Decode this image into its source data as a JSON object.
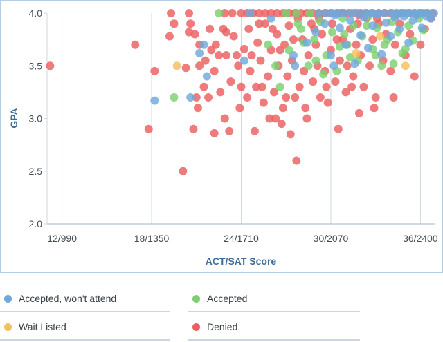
{
  "chart_data": {
    "type": "scatter",
    "title": "",
    "xlabel": "ACT/SAT Score",
    "ylabel": "GPA",
    "x_ticks": [
      {
        "value": 12,
        "label": "12/990"
      },
      {
        "value": 18,
        "label": "18/1350"
      },
      {
        "value": 24,
        "label": "24/1710"
      },
      {
        "value": 30,
        "label": "30/2070"
      },
      {
        "value": 36,
        "label": "36/2400"
      }
    ],
    "y_ticks": [
      {
        "value": 2.0,
        "label": "2.0"
      },
      {
        "value": 2.5,
        "label": "2.5"
      },
      {
        "value": 3.0,
        "label": "3.0"
      },
      {
        "value": 3.5,
        "label": "3.5"
      },
      {
        "value": 4.0,
        "label": "4.0"
      }
    ],
    "xlim": [
      11,
      37
    ],
    "ylim": [
      2.0,
      4.0
    ],
    "grid": "vertical",
    "legend_position": "bottom",
    "series": [
      {
        "name": "Accepted, won't attend",
        "color": "#6fa8dc",
        "points": [
          [
            18.2,
            3.17
          ],
          [
            20.6,
            3.2
          ],
          [
            21.7,
            3.4
          ],
          [
            21.5,
            3.7
          ],
          [
            21.2,
            3.62
          ],
          [
            24.2,
            3.55
          ],
          [
            26.0,
            3.95
          ],
          [
            27.5,
            3.6
          ],
          [
            28.4,
            3.72
          ],
          [
            29.0,
            3.82
          ],
          [
            29.6,
            3.9
          ],
          [
            30.0,
            3.6
          ],
          [
            30.3,
            3.98
          ],
          [
            30.6,
            3.86
          ],
          [
            31.0,
            3.7
          ],
          [
            31.3,
            3.93
          ],
          [
            31.6,
            3.52
          ],
          [
            32.0,
            3.79
          ],
          [
            32.2,
            3.96
          ],
          [
            32.5,
            3.67
          ],
          [
            32.8,
            3.88
          ],
          [
            33.0,
            3.99
          ],
          [
            33.4,
            3.61
          ],
          [
            33.7,
            3.91
          ],
          [
            34.0,
            3.78
          ],
          [
            34.3,
            3.96
          ],
          [
            34.6,
            3.85
          ],
          [
            34.9,
            3.97
          ],
          [
            35.2,
            3.72
          ],
          [
            35.5,
            3.93
          ],
          [
            35.8,
            3.99
          ],
          [
            36.1,
            3.86
          ],
          [
            36.4,
            3.97
          ],
          [
            36.7,
            3.95
          ],
          [
            36.9,
            4.0
          ],
          [
            34.1,
            4.0
          ],
          [
            34.4,
            4.0
          ],
          [
            34.7,
            4.0
          ],
          [
            35.0,
            4.0
          ],
          [
            35.3,
            4.0
          ],
          [
            35.6,
            4.0
          ],
          [
            35.9,
            4.0
          ],
          [
            36.2,
            4.0
          ],
          [
            36.5,
            4.0
          ],
          [
            31.4,
            4.0
          ],
          [
            31.8,
            4.0
          ],
          [
            32.3,
            4.0
          ],
          [
            32.7,
            4.0
          ],
          [
            33.2,
            4.0
          ],
          [
            33.6,
            4.0
          ],
          [
            30.1,
            4.0
          ],
          [
            30.5,
            4.0
          ],
          [
            30.9,
            4.0
          ],
          [
            29.2,
            4.0
          ],
          [
            29.7,
            4.0
          ],
          [
            24.6,
            4.0
          ],
          [
            30.2,
            3.5
          ],
          [
            27.6,
            3.5
          ]
        ]
      },
      {
        "name": "Accepted",
        "color": "#7dcf6f",
        "points": [
          [
            19.5,
            3.2
          ],
          [
            22.5,
            4.0
          ],
          [
            26.6,
            3.3
          ],
          [
            27.2,
            3.65
          ],
          [
            28.0,
            3.85
          ],
          [
            28.5,
            3.5
          ],
          [
            28.9,
            3.75
          ],
          [
            29.3,
            3.92
          ],
          [
            29.7,
            3.6
          ],
          [
            30.1,
            3.82
          ],
          [
            30.4,
            3.45
          ],
          [
            30.8,
            3.95
          ],
          [
            31.1,
            3.7
          ],
          [
            31.5,
            3.88
          ],
          [
            31.8,
            3.55
          ],
          [
            32.1,
            3.78
          ],
          [
            32.5,
            3.97
          ],
          [
            32.8,
            3.66
          ],
          [
            33.1,
            3.86
          ],
          [
            33.4,
            3.5
          ],
          [
            33.8,
            3.75
          ],
          [
            34.1,
            3.92
          ],
          [
            34.5,
            3.82
          ],
          [
            34.8,
            3.62
          ],
          [
            35.2,
            3.88
          ],
          [
            35.5,
            3.74
          ],
          [
            35.9,
            3.95
          ],
          [
            36.2,
            3.84
          ],
          [
            27.8,
            3.9
          ],
          [
            28.2,
            3.72
          ],
          [
            29.0,
            3.55
          ],
          [
            29.5,
            3.42
          ],
          [
            30.6,
            3.68
          ],
          [
            31.3,
            3.58
          ],
          [
            32.4,
            3.88
          ],
          [
            33.0,
            3.6
          ],
          [
            33.6,
            3.7
          ],
          [
            34.2,
            3.52
          ],
          [
            35.0,
            3.66
          ],
          [
            27.0,
            4.0
          ],
          [
            27.7,
            4.0
          ],
          [
            28.6,
            4.0
          ],
          [
            25.8,
            3.7
          ],
          [
            26.3,
            3.5
          ],
          [
            30.9,
            3.8
          ]
        ]
      },
      {
        "name": "Wait Listed",
        "color": "#f1c15d",
        "points": [
          [
            19.7,
            3.5
          ],
          [
            33.3,
            3.78
          ],
          [
            35.0,
            3.5
          ],
          [
            31.7,
            3.62
          ]
        ]
      },
      {
        "name": "Denied",
        "color": "#ec5f5f",
        "points": [
          [
            11.2,
            3.5
          ],
          [
            16.9,
            3.7
          ],
          [
            17.8,
            2.9
          ],
          [
            18.2,
            3.45
          ],
          [
            19.2,
            3.78
          ],
          [
            19.5,
            3.9
          ],
          [
            19.3,
            4.0
          ],
          [
            20.1,
            2.5
          ],
          [
            20.3,
            3.48
          ],
          [
            20.5,
            3.82
          ],
          [
            20.6,
            3.9
          ],
          [
            20.5,
            4.0
          ],
          [
            20.9,
            3.8
          ],
          [
            20.8,
            2.9
          ],
          [
            21.1,
            3.1
          ],
          [
            21.0,
            3.2
          ],
          [
            21.5,
            3.3
          ],
          [
            21.2,
            3.5
          ],
          [
            21.2,
            3.7
          ],
          [
            21.6,
            3.55
          ],
          [
            21.8,
            3.2
          ],
          [
            22.0,
            3.65
          ],
          [
            22.2,
            3.45
          ],
          [
            22.3,
            3.7
          ],
          [
            22.2,
            2.86
          ],
          [
            22.6,
            3.25
          ],
          [
            22.9,
            3.0
          ],
          [
            23.0,
            3.6
          ],
          [
            23.2,
            2.88
          ],
          [
            23.3,
            3.35
          ],
          [
            23.5,
            3.78
          ],
          [
            23.8,
            3.5
          ],
          [
            24.0,
            3.3
          ],
          [
            23.9,
            3.1
          ],
          [
            24.2,
            3.66
          ],
          [
            24.5,
            3.85
          ],
          [
            24.6,
            3.45
          ],
          [
            24.9,
            2.88
          ],
          [
            25.0,
            3.3
          ],
          [
            25.1,
            3.72
          ],
          [
            25.3,
            3.55
          ],
          [
            25.5,
            3.15
          ],
          [
            25.6,
            3.9
          ],
          [
            25.8,
            3.4
          ],
          [
            25.9,
            3.0
          ],
          [
            26.0,
            3.65
          ],
          [
            26.2,
            3.25
          ],
          [
            26.4,
            3.8
          ],
          [
            26.5,
            3.5
          ],
          [
            26.7,
            2.95
          ],
          [
            26.8,
            3.1
          ],
          [
            26.9,
            3.7
          ],
          [
            27.1,
            3.4
          ],
          [
            27.2,
            3.88
          ],
          [
            27.3,
            2.85
          ],
          [
            27.4,
            3.55
          ],
          [
            27.6,
            3.2
          ],
          [
            27.7,
            2.6
          ],
          [
            27.9,
            3.3
          ],
          [
            28.1,
            3.75
          ],
          [
            28.2,
            3.45
          ],
          [
            28.4,
            3.0
          ],
          [
            28.5,
            3.6
          ],
          [
            28.7,
            3.9
          ],
          [
            28.8,
            3.35
          ],
          [
            29.0,
            3.7
          ],
          [
            29.1,
            3.5
          ],
          [
            29.3,
            3.2
          ],
          [
            29.4,
            3.8
          ],
          [
            29.6,
            3.45
          ],
          [
            29.8,
            3.15
          ],
          [
            30.0,
            3.65
          ],
          [
            30.1,
            3.9
          ],
          [
            30.3,
            3.35
          ],
          [
            30.5,
            2.9
          ],
          [
            30.6,
            3.55
          ],
          [
            30.8,
            3.75
          ],
          [
            31.0,
            3.25
          ],
          [
            31.1,
            3.5
          ],
          [
            31.3,
            3.85
          ],
          [
            31.5,
            3.4
          ],
          [
            31.7,
            3.7
          ],
          [
            31.9,
            3.05
          ],
          [
            32.0,
            3.6
          ],
          [
            32.2,
            3.3
          ],
          [
            32.4,
            3.95
          ],
          [
            32.6,
            3.5
          ],
          [
            32.8,
            3.75
          ],
          [
            33.0,
            3.2
          ],
          [
            33.2,
            3.9
          ],
          [
            33.5,
            3.55
          ],
          [
            33.7,
            3.8
          ],
          [
            34.0,
            3.45
          ],
          [
            34.3,
            3.7
          ],
          [
            34.6,
            3.9
          ],
          [
            35.0,
            3.6
          ],
          [
            35.3,
            3.8
          ],
          [
            35.6,
            3.4
          ],
          [
            36.0,
            3.7
          ],
          [
            36.3,
            3.85
          ],
          [
            36.7,
            3.95
          ],
          [
            26.6,
            3.65
          ],
          [
            27.8,
            3.95
          ],
          [
            29.2,
            3.95
          ],
          [
            30.7,
            4.0
          ],
          [
            31.9,
            3.98
          ],
          [
            22.8,
            3.85
          ],
          [
            23.7,
            3.6
          ],
          [
            24.4,
            3.2
          ],
          [
            25.2,
            3.9
          ],
          [
            26.1,
            3.85
          ],
          [
            27.5,
            3.75
          ],
          [
            28.9,
            3.85
          ],
          [
            30.4,
            3.75
          ],
          [
            31.8,
            3.9
          ],
          [
            33.1,
            3.95
          ],
          [
            34.4,
            3.98
          ],
          [
            35.8,
            3.98
          ],
          [
            24.0,
            4.0
          ],
          [
            24.4,
            4.0
          ],
          [
            24.8,
            4.0
          ],
          [
            25.2,
            4.0
          ],
          [
            25.6,
            4.0
          ],
          [
            26.0,
            4.0
          ],
          [
            26.4,
            4.0
          ],
          [
            26.8,
            4.0
          ],
          [
            27.2,
            4.0
          ],
          [
            27.6,
            4.0
          ],
          [
            28.0,
            4.0
          ],
          [
            28.4,
            4.0
          ],
          [
            28.8,
            4.0
          ],
          [
            29.2,
            4.0
          ],
          [
            29.6,
            4.0
          ],
          [
            30.0,
            4.0
          ],
          [
            30.4,
            4.0
          ],
          [
            30.8,
            4.0
          ],
          [
            31.2,
            4.0
          ],
          [
            31.6,
            4.0
          ],
          [
            32.0,
            4.0
          ],
          [
            32.4,
            4.0
          ],
          [
            32.8,
            4.0
          ],
          [
            33.2,
            4.0
          ],
          [
            33.6,
            4.0
          ],
          [
            34.0,
            4.0
          ],
          [
            34.4,
            4.0
          ],
          [
            34.8,
            4.0
          ],
          [
            35.2,
            4.0
          ],
          [
            35.6,
            4.0
          ],
          [
            36.0,
            4.0
          ],
          [
            36.4,
            4.0
          ],
          [
            36.8,
            4.0
          ],
          [
            21.9,
            3.85
          ],
          [
            22.5,
            3.6
          ],
          [
            23.4,
            4.0
          ],
          [
            22.9,
            4.0
          ],
          [
            23.0,
            3.82
          ],
          [
            24.7,
            3.6
          ],
          [
            25.4,
            3.3
          ],
          [
            26.3,
            3.0
          ],
          [
            27.0,
            3.2
          ],
          [
            28.3,
            3.1
          ],
          [
            29.7,
            3.3
          ],
          [
            31.4,
            3.3
          ],
          [
            32.9,
            3.1
          ],
          [
            34.2,
            3.2
          ]
        ]
      }
    ]
  },
  "legend": [
    {
      "label": "Accepted, won't attend",
      "color": "#6fa8dc"
    },
    {
      "label": "Accepted",
      "color": "#7dcf6f"
    },
    {
      "label": "Wait Listed",
      "color": "#f1c15d"
    },
    {
      "label": "Denied",
      "color": "#ec5f5f"
    }
  ]
}
